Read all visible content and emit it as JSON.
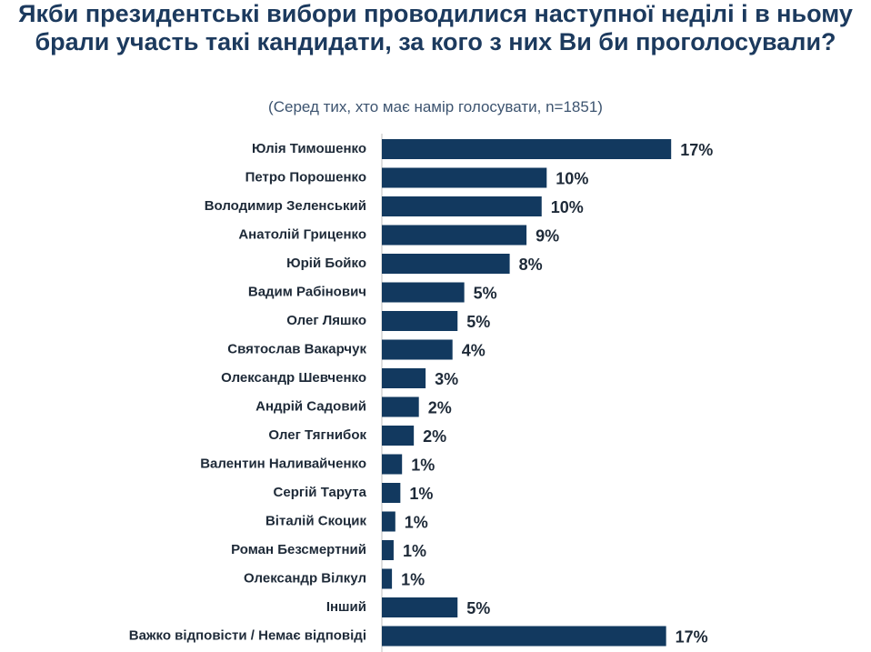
{
  "chart_data": {
    "type": "bar",
    "orientation": "horizontal",
    "title": "Якби президентські вибори проводилися наступної неділі і в ньому брали участь такі кандидати, за кого з них Ви би проголосували?",
    "subtitle": "(Серед тих, хто має намір голосувати, n=1851)",
    "categories": [
      "Юлія Тимошенко",
      "Петро Порошенко",
      "Володимир Зеленський",
      "Анатолій Гриценко",
      "Юрій Бойко",
      "Вадим Рабінович",
      "Олег Ляшко",
      "Святослав Вакарчук",
      "Олександр Шевченко",
      "Андрій Садовий",
      "Олег Тягнибок",
      "Валентин Наливайченко",
      "Сергій Тарута",
      "Віталій Скоцик",
      "Роман Безсмертний",
      "Олександр Вілкул",
      "Інший",
      "Важко відповісти / Немає відповіді"
    ],
    "values": [
      17.2,
      9.8,
      9.5,
      8.6,
      7.6,
      4.9,
      4.5,
      4.2,
      2.6,
      2.2,
      1.9,
      1.2,
      1.1,
      0.8,
      0.7,
      0.6,
      4.5,
      16.9
    ],
    "value_labels": [
      "17%",
      "10%",
      "10%",
      "9%",
      "8%",
      "5%",
      "5%",
      "4%",
      "3%",
      "2%",
      "2%",
      "1%",
      "1%",
      "1%",
      "1%",
      "1%",
      "5%",
      "17%"
    ],
    "color": "#12395f"
  }
}
